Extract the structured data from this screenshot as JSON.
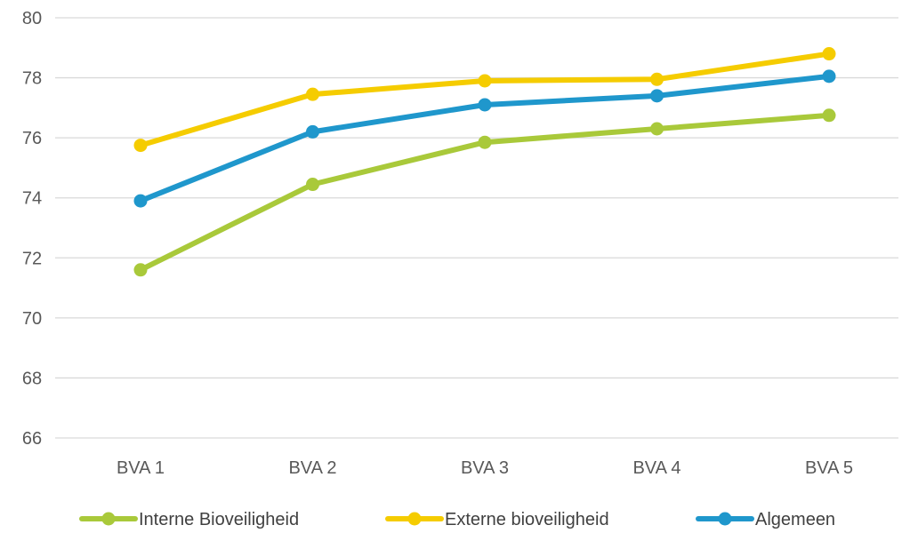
{
  "chart_data": {
    "type": "line",
    "title": "",
    "xlabel": "",
    "ylabel": "",
    "categories": [
      "BVA 1",
      "BVA 2",
      "BVA 3",
      "BVA 4",
      "BVA 5"
    ],
    "ylim": [
      66,
      80
    ],
    "yticks": [
      66,
      68,
      70,
      72,
      74,
      76,
      78,
      80
    ],
    "grid": true,
    "legend_position": "bottom",
    "series": [
      {
        "name": "Interne Bioveiligheid",
        "color": "#a9c93a",
        "values": [
          71.6,
          74.45,
          75.85,
          76.3,
          76.75
        ]
      },
      {
        "name": "Externe bioveiligheid",
        "color": "#f5cc00",
        "values": [
          75.75,
          77.45,
          77.9,
          77.95,
          78.8
        ]
      },
      {
        "name": "Algemeen",
        "color": "#1f97cc",
        "values": [
          73.9,
          76.2,
          77.1,
          77.4,
          78.05
        ]
      }
    ]
  }
}
